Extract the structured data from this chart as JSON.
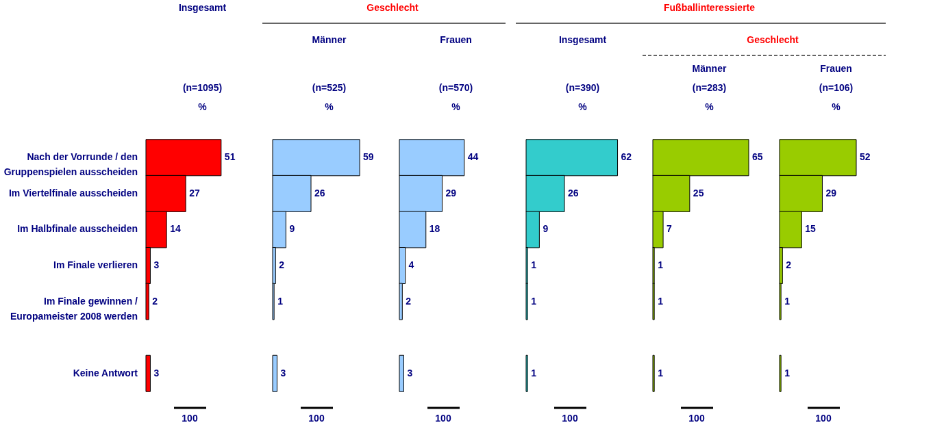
{
  "chart_data": [
    {
      "type": "bar",
      "orientation": "horizontal",
      "title": "Insgesamt",
      "subtitle": "(n=1095)",
      "xlabel": "%",
      "categories": [
        "Nach der Vorrunde / den Gruppenspielen ausscheiden",
        "Im Viertelfinale ausscheiden",
        "Im Halbfinale ausscheiden",
        "Im Finale verlieren",
        "Im Finale gewinnen / Europameister 2008 werden",
        "Keine Antwort"
      ],
      "series": [
        {
          "color": "#ff0000",
          "values": [
            51,
            27,
            14,
            3,
            2,
            3
          ]
        }
      ],
      "data_labels": true,
      "tick_labels": "y",
      "annotations": [
        "100"
      ]
    },
    {
      "type": "bar",
      "orientation": "horizontal",
      "title": "Männer",
      "subtitle": "(n=525)",
      "xlabel": "%",
      "series": [
        {
          "color": "#99ccff",
          "values": [
            59,
            26,
            9,
            2,
            1,
            3
          ]
        }
      ],
      "data_labels": true,
      "annotations": [
        "Geschlecht",
        "100"
      ]
    },
    {
      "type": "bar",
      "orientation": "horizontal",
      "title": "Frauen",
      "subtitle": "(n=570)",
      "xlabel": "%",
      "series": [
        {
          "color": "#99ccff",
          "values": [
            44,
            29,
            18,
            4,
            2,
            3
          ]
        }
      ],
      "data_labels": true,
      "annotations": [
        "100"
      ]
    },
    {
      "type": "bar",
      "orientation": "horizontal",
      "title": "Insgesamt",
      "subtitle": "(n=390)",
      "xlabel": "%",
      "series": [
        {
          "color": "#33cccc",
          "values": [
            62,
            26,
            9,
            1,
            1,
            1
          ]
        }
      ],
      "data_labels": true,
      "annotations": [
        "Fußballinteressierte",
        "100"
      ]
    },
    {
      "type": "bar",
      "orientation": "horizontal",
      "title": "Männer",
      "subtitle": "(n=283)",
      "xlabel": "%",
      "series": [
        {
          "color": "#99cc00",
          "values": [
            65,
            25,
            7,
            1,
            1,
            1
          ]
        }
      ],
      "data_labels": true,
      "annotations": [
        "Geschlecht",
        "100"
      ]
    },
    {
      "type": "bar",
      "orientation": "horizontal",
      "title": "Frauen",
      "subtitle": "(n=106)",
      "xlabel": "%",
      "series": [
        {
          "color": "#99cc00",
          "values": [
            52,
            29,
            15,
            2,
            1,
            1
          ]
        }
      ],
      "data_labels": true,
      "annotations": [
        "100"
      ]
    }
  ]
}
